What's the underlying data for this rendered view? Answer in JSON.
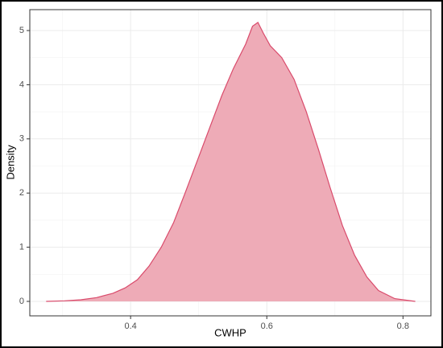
{
  "chart_data": {
    "type": "density",
    "xlabel": "CWHP",
    "ylabel": "Density",
    "x": [
      0.276,
      0.303,
      0.327,
      0.35,
      0.374,
      0.392,
      0.41,
      0.427,
      0.445,
      0.463,
      0.48,
      0.498,
      0.516,
      0.534,
      0.551,
      0.569,
      0.579,
      0.587,
      0.595,
      0.605,
      0.622,
      0.64,
      0.658,
      0.676,
      0.693,
      0.711,
      0.729,
      0.747,
      0.764,
      0.788,
      0.818
    ],
    "values": [
      0,
      0.01,
      0.03,
      0.07,
      0.15,
      0.25,
      0.4,
      0.65,
      1.0,
      1.45,
      2.0,
      2.6,
      3.2,
      3.8,
      4.3,
      4.75,
      5.08,
      5.15,
      4.95,
      4.72,
      4.5,
      4.1,
      3.5,
      2.8,
      2.1,
      1.4,
      0.85,
      0.45,
      0.2,
      0.05,
      0
    ],
    "fill": "#eeabb7",
    "color": "#d94a6b",
    "xlim": [
      0.252,
      0.841
    ],
    "ylim": [
      -0.267,
      5.386
    ],
    "xticks": [
      0.4,
      0.6,
      0.8
    ],
    "yticks": [
      0,
      1,
      2,
      3,
      4,
      5
    ],
    "grid": true
  }
}
